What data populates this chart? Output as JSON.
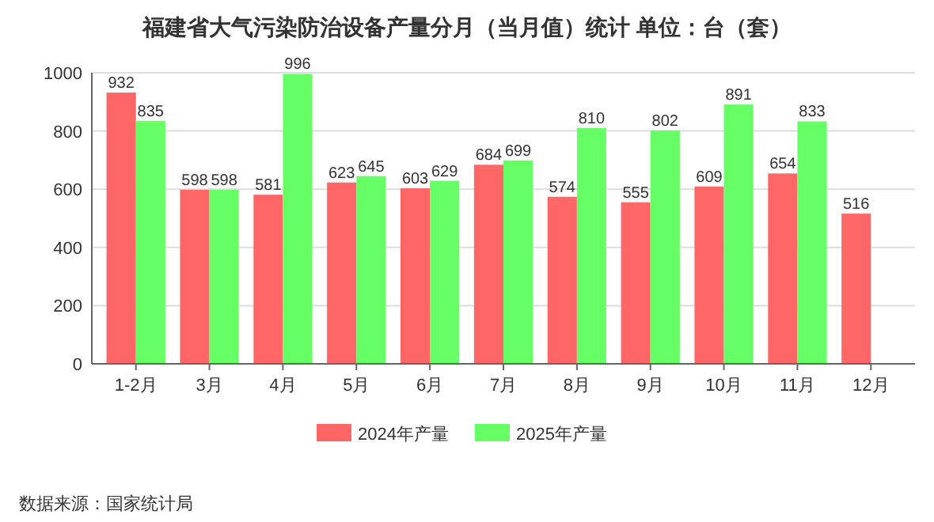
{
  "chart_data": {
    "type": "bar",
    "title": "福建省大气污染防治设备产量分月（当月值）统计 单位：台（套）",
    "categories": [
      "1-2月",
      "3月",
      "4月",
      "5月",
      "6月",
      "7月",
      "8月",
      "9月",
      "10月",
      "11月",
      "12月"
    ],
    "series": [
      {
        "name": "2024年产量",
        "color": "#ff6666",
        "values": [
          932,
          598,
          581,
          623,
          603,
          684,
          574,
          555,
          609,
          654,
          516
        ]
      },
      {
        "name": "2025年产量",
        "color": "#66ff66",
        "values": [
          835,
          598,
          996,
          645,
          629,
          699,
          810,
          802,
          891,
          833,
          null
        ]
      }
    ],
    "ylim": [
      0,
      1000
    ],
    "yticks": [
      0,
      200,
      400,
      600,
      800,
      1000
    ],
    "grid": "y",
    "legend": "bottom",
    "data_labels": true,
    "annotations": [
      "数据来源：国家统计局"
    ]
  }
}
